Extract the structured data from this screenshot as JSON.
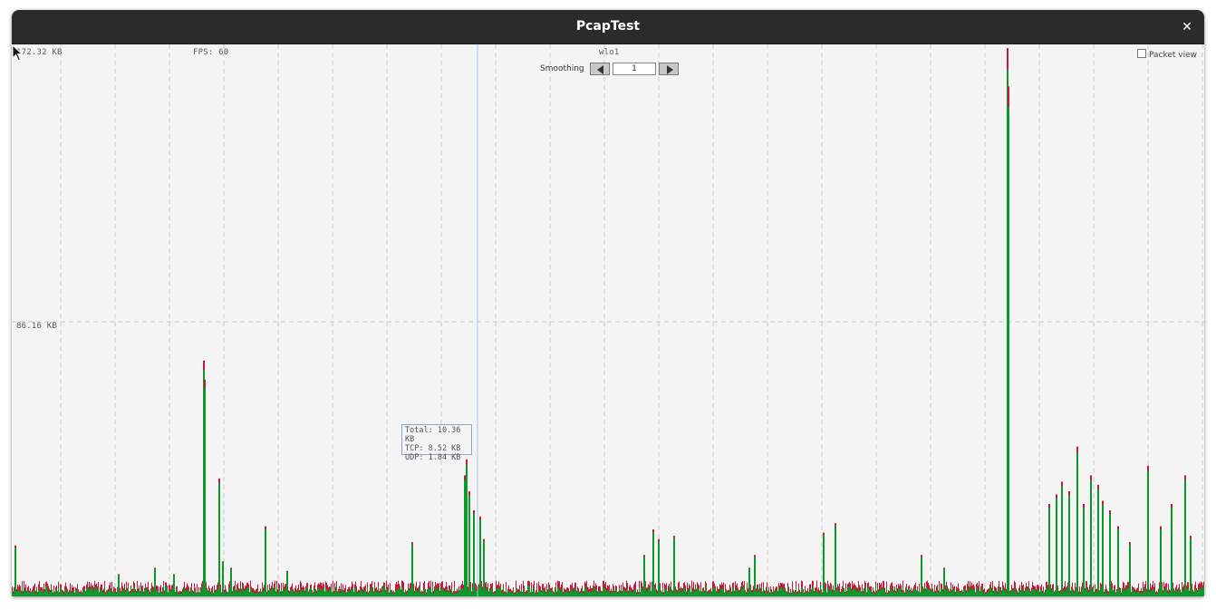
{
  "window": {
    "title": "PcapTest",
    "close_glyph": "✕"
  },
  "plot": {
    "max_label": "172.32 KB",
    "mid_label": "86.16 KB",
    "fps": "FPS: 60",
    "interface": "wlo1",
    "smoothing_label": "Smoothing",
    "smoothing_value": "1",
    "packet_view_label": "Packet view",
    "packet_view_checked": false,
    "tooltip": {
      "total": "Total: 10.36 KB",
      "tcp": "TCP: 8.52 KB",
      "udp": "UDP: 1.84 KB"
    },
    "colors": {
      "tcp": "#0a9a2a",
      "udp": "#c8173c",
      "grid": "#c8c8c8",
      "hover_line": "#a7c7e7"
    },
    "icons": {
      "left": "triangle-left-icon",
      "right": "triangle-right-icon",
      "cursor": "mouse-pointer-icon"
    }
  },
  "chart_data": {
    "type": "area",
    "ylim": [
      0,
      172.32
    ],
    "yticks": [
      "86.16 KB",
      "172.32 KB"
    ],
    "series": [
      {
        "name": "TCP",
        "color": "#0a9a2a"
      },
      {
        "name": "UDP",
        "color": "#c8173c"
      }
    ],
    "spikes_kb": [
      {
        "x": 0.002,
        "v": 16
      },
      {
        "x": 0.089,
        "v": 7
      },
      {
        "x": 0.119,
        "v": 9
      },
      {
        "x": 0.135,
        "v": 7
      },
      {
        "x": 0.16,
        "v": 74
      },
      {
        "x": 0.161,
        "v": 68
      },
      {
        "x": 0.173,
        "v": 37
      },
      {
        "x": 0.176,
        "v": 11
      },
      {
        "x": 0.183,
        "v": 9
      },
      {
        "x": 0.212,
        "v": 22
      },
      {
        "x": 0.23,
        "v": 8
      },
      {
        "x": 0.335,
        "v": 17
      },
      {
        "x": 0.379,
        "v": 38
      },
      {
        "x": 0.381,
        "v": 43
      },
      {
        "x": 0.383,
        "v": 33
      },
      {
        "x": 0.387,
        "v": 27
      },
      {
        "x": 0.392,
        "v": 25
      },
      {
        "x": 0.395,
        "v": 18
      },
      {
        "x": 0.53,
        "v": 13
      },
      {
        "x": 0.537,
        "v": 21
      },
      {
        "x": 0.542,
        "v": 18
      },
      {
        "x": 0.555,
        "v": 19
      },
      {
        "x": 0.618,
        "v": 9
      },
      {
        "x": 0.622,
        "v": 13
      },
      {
        "x": 0.68,
        "v": 20
      },
      {
        "x": 0.69,
        "v": 23
      },
      {
        "x": 0.762,
        "v": 13
      },
      {
        "x": 0.781,
        "v": 9
      },
      {
        "x": 0.834,
        "v": 172
      },
      {
        "x": 0.835,
        "v": 160
      },
      {
        "x": 0.869,
        "v": 29
      },
      {
        "x": 0.875,
        "v": 32
      },
      {
        "x": 0.88,
        "v": 36
      },
      {
        "x": 0.886,
        "v": 33
      },
      {
        "x": 0.893,
        "v": 47
      },
      {
        "x": 0.898,
        "v": 29
      },
      {
        "x": 0.904,
        "v": 38
      },
      {
        "x": 0.91,
        "v": 35
      },
      {
        "x": 0.914,
        "v": 30
      },
      {
        "x": 0.92,
        "v": 27
      },
      {
        "x": 0.927,
        "v": 22
      },
      {
        "x": 0.937,
        "v": 17
      },
      {
        "x": 0.952,
        "v": 41
      },
      {
        "x": 0.963,
        "v": 22
      },
      {
        "x": 0.972,
        "v": 29
      },
      {
        "x": 0.983,
        "v": 38
      },
      {
        "x": 0.988,
        "v": 19
      }
    ]
  }
}
